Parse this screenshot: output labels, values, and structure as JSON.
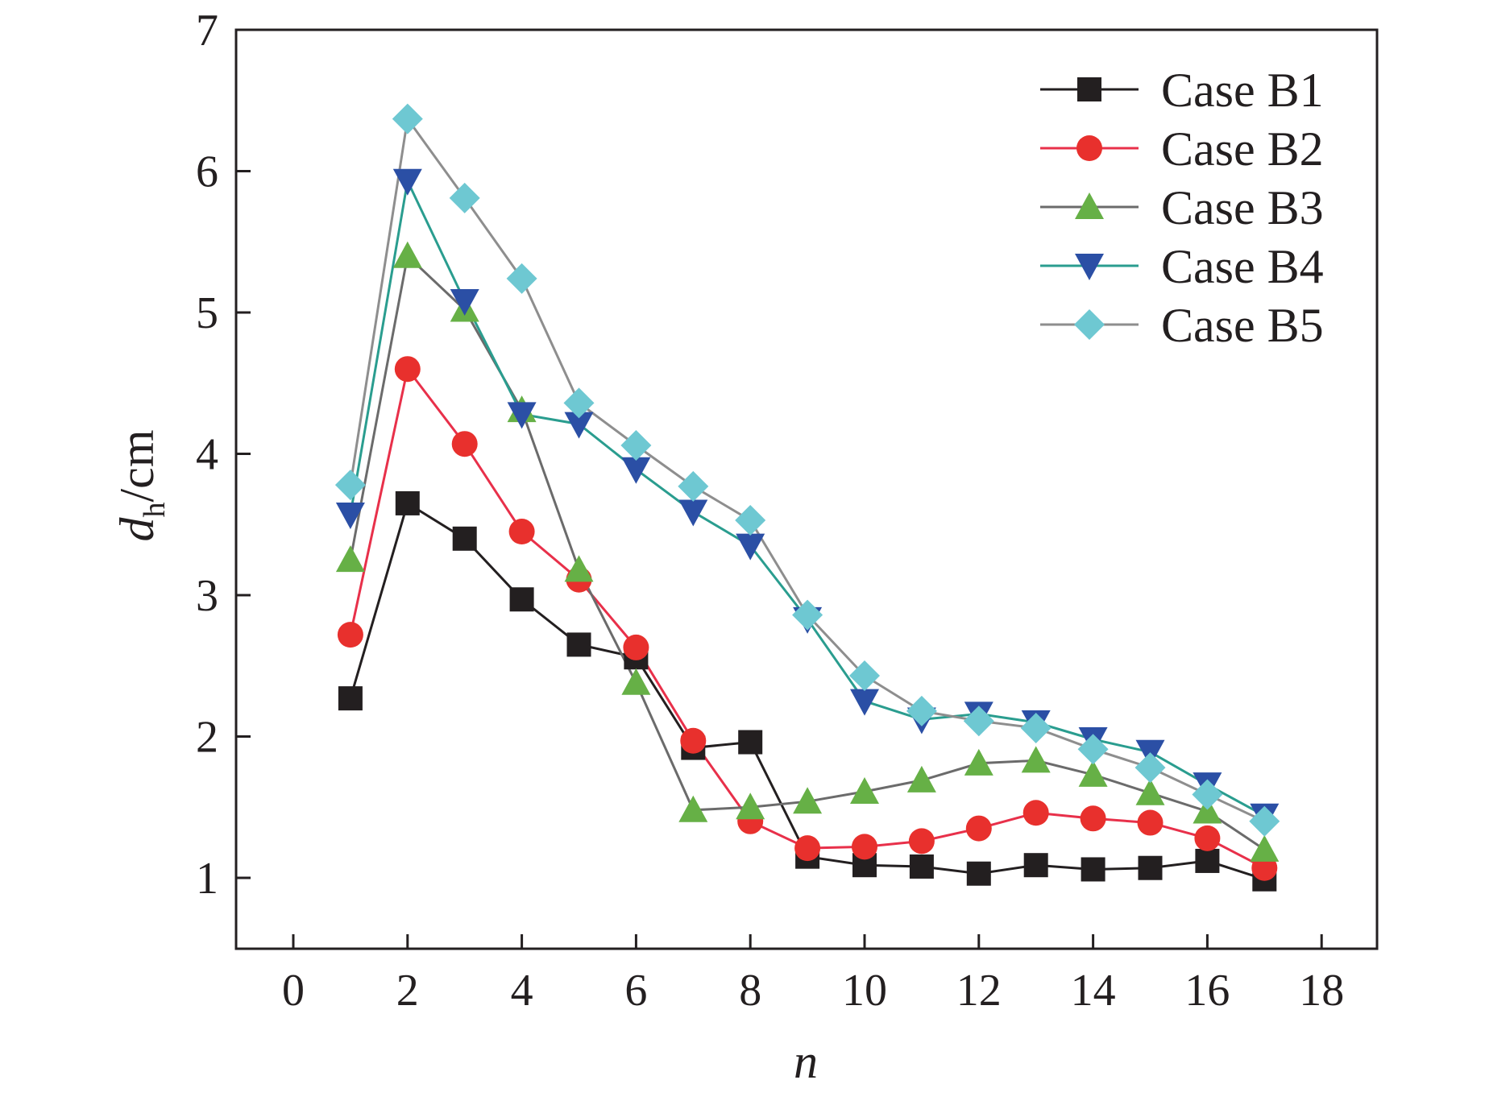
{
  "chart_data": {
    "type": "line",
    "title": "",
    "xlabel": "n",
    "ylabel_main": "d",
    "ylabel_sub": "h",
    "ylabel_unit": "/cm",
    "xlim": [
      -1,
      19
    ],
    "ylim": [
      0.5,
      7
    ],
    "xticks": [
      0,
      2,
      4,
      6,
      8,
      10,
      12,
      14,
      16,
      18
    ],
    "yticks": [
      1,
      2,
      3,
      4,
      5,
      6,
      7
    ],
    "grid": false,
    "legend_position": "top-right",
    "x": [
      1,
      2,
      3,
      4,
      5,
      6,
      7,
      8,
      9,
      10,
      11,
      12,
      13,
      14,
      15,
      16,
      17
    ],
    "series": [
      {
        "name": "Case B1",
        "marker": "square",
        "line_color": "#231f20",
        "marker_color": "#231f20",
        "values": [
          2.27,
          3.65,
          3.4,
          2.97,
          2.65,
          2.56,
          1.92,
          1.96,
          1.15,
          1.09,
          1.08,
          1.03,
          1.09,
          1.06,
          1.07,
          1.12,
          0.99
        ]
      },
      {
        "name": "Case B2",
        "marker": "circle",
        "line_color": "#e8304a",
        "marker_color": "#e8302d",
        "values": [
          2.72,
          4.6,
          4.07,
          3.45,
          3.11,
          2.63,
          1.97,
          1.4,
          1.21,
          1.22,
          1.26,
          1.35,
          1.46,
          1.42,
          1.39,
          1.28,
          1.07
        ]
      },
      {
        "name": "Case B3",
        "marker": "triangle-up",
        "line_color": "#6b6b6b",
        "marker_color": "#66b046",
        "values": [
          3.25,
          5.4,
          5.02,
          4.31,
          3.18,
          2.38,
          1.48,
          1.5,
          1.54,
          1.61,
          1.69,
          1.81,
          1.83,
          1.73,
          1.6,
          1.47,
          1.2
        ]
      },
      {
        "name": "Case B4",
        "marker": "triangle-down",
        "line_color": "#2a9d8f",
        "marker_color": "#2b4fa5",
        "values": [
          3.57,
          5.93,
          5.08,
          4.28,
          4.21,
          3.89,
          3.59,
          3.35,
          2.83,
          2.25,
          2.12,
          2.16,
          2.1,
          1.98,
          1.89,
          1.66,
          1.44
        ]
      },
      {
        "name": "Case B5",
        "marker": "diamond",
        "line_color": "#8e8e8e",
        "marker_color": "#6ec8d2",
        "values": [
          3.78,
          6.37,
          5.81,
          5.24,
          4.36,
          4.06,
          3.77,
          3.53,
          2.86,
          2.43,
          2.18,
          2.11,
          2.06,
          1.91,
          1.78,
          1.59,
          1.4
        ]
      }
    ]
  }
}
